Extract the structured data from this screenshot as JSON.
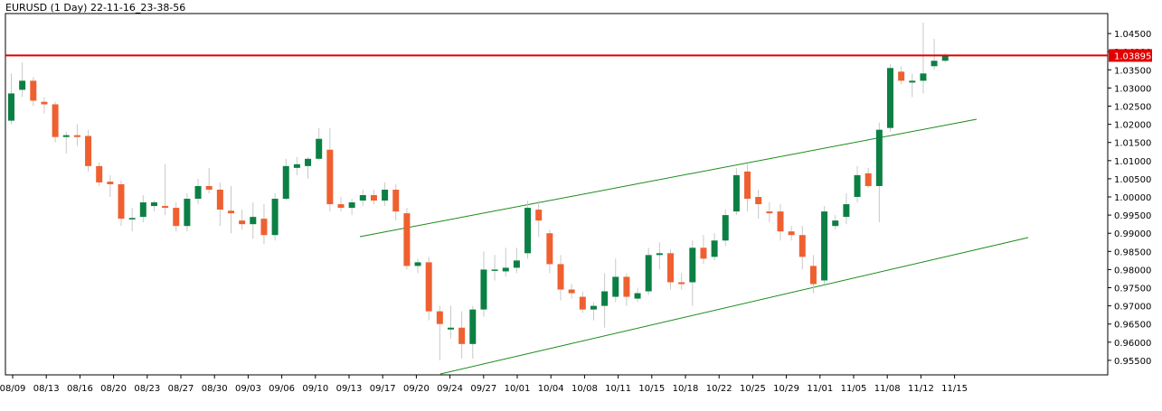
{
  "chart_data": {
    "type": "candlestick",
    "title": "EURUSD (1 Day) 22-11-16_23-38-56",
    "colors": {
      "up": "#0c8044",
      "down": "#ef6030",
      "wick": "#c8c8c8",
      "trendline": "#1a8a1a",
      "price_line": "#dd0000",
      "price_label_bg": "#e00000"
    },
    "ylim": [
      0.951,
      1.0505
    ],
    "y_ticks": [
      "0.95500",
      "0.96000",
      "0.96500",
      "0.97000",
      "0.97500",
      "0.98000",
      "0.98500",
      "0.99000",
      "0.99500",
      "1.00000",
      "1.00500",
      "1.01000",
      "1.01500",
      "1.02000",
      "1.02500",
      "1.03000",
      "1.03500",
      "1.04000",
      "1.04500"
    ],
    "x_ticks": [
      "08/09",
      "08/13",
      "08/16",
      "08/20",
      "08/23",
      "08/27",
      "08/30",
      "09/03",
      "09/06",
      "09/10",
      "09/13",
      "09/17",
      "09/20",
      "09/24",
      "09/27",
      "10/01",
      "10/04",
      "10/08",
      "10/11",
      "10/15",
      "10/18",
      "10/22",
      "10/25",
      "10/29",
      "11/01",
      "11/05",
      "11/08",
      "11/12",
      "11/15"
    ],
    "current_price": 1.03895,
    "current_price_label": "1.03895",
    "candles": [
      {
        "o": 1.021,
        "h": 1.034,
        "l": 1.02,
        "c": 1.0285
      },
      {
        "o": 1.0295,
        "h": 1.037,
        "l": 1.0275,
        "c": 1.032
      },
      {
        "o": 1.032,
        "h": 1.033,
        "l": 1.025,
        "c": 1.0265
      },
      {
        "o": 1.0262,
        "h": 1.0275,
        "l": 1.023,
        "c": 1.0255
      },
      {
        "o": 1.0255,
        "h": 1.0262,
        "l": 1.015,
        "c": 1.0165
      },
      {
        "o": 1.0165,
        "h": 1.018,
        "l": 1.012,
        "c": 1.017
      },
      {
        "o": 1.017,
        "h": 1.02,
        "l": 1.014,
        "c": 1.0165
      },
      {
        "o": 1.0168,
        "h": 1.0185,
        "l": 1.007,
        "c": 1.0085
      },
      {
        "o": 1.0085,
        "h": 1.0095,
        "l": 1.003,
        "c": 1.004
      },
      {
        "o": 1.0042,
        "h": 1.006,
        "l": 1.0,
        "c": 1.0035
      },
      {
        "o": 1.0035,
        "h": 1.0045,
        "l": 0.992,
        "c": 0.994
      },
      {
        "o": 0.9938,
        "h": 0.997,
        "l": 0.9905,
        "c": 0.9942
      },
      {
        "o": 0.9945,
        "h": 1.0005,
        "l": 0.993,
        "c": 0.9985
      },
      {
        "o": 0.9975,
        "h": 0.999,
        "l": 0.996,
        "c": 0.9985
      },
      {
        "o": 0.9975,
        "h": 1.009,
        "l": 0.995,
        "c": 0.997
      },
      {
        "o": 0.997,
        "h": 0.9985,
        "l": 0.9905,
        "c": 0.992
      },
      {
        "o": 0.992,
        "h": 1.001,
        "l": 0.9905,
        "c": 0.9995
      },
      {
        "o": 0.9995,
        "h": 1.005,
        "l": 0.998,
        "c": 1.003
      },
      {
        "o": 1.003,
        "h": 1.008,
        "l": 1.001,
        "c": 1.002
      },
      {
        "o": 1.002,
        "h": 1.004,
        "l": 0.992,
        "c": 0.9965
      },
      {
        "o": 0.9962,
        "h": 1.003,
        "l": 0.99,
        "c": 0.9955
      },
      {
        "o": 0.9935,
        "h": 0.9965,
        "l": 0.991,
        "c": 0.9925
      },
      {
        "o": 0.9925,
        "h": 0.9985,
        "l": 0.9885,
        "c": 0.9945
      },
      {
        "o": 0.994,
        "h": 0.998,
        "l": 0.987,
        "c": 0.9895
      },
      {
        "o": 0.9895,
        "h": 1.001,
        "l": 0.988,
        "c": 0.9995
      },
      {
        "o": 0.9995,
        "h": 1.0105,
        "l": 0.999,
        "c": 1.0085
      },
      {
        "o": 1.008,
        "h": 1.011,
        "l": 1.006,
        "c": 1.009
      },
      {
        "o": 1.0085,
        "h": 1.011,
        "l": 1.005,
        "c": 1.0105
      },
      {
        "o": 1.0105,
        "h": 1.019,
        "l": 1.01,
        "c": 1.016
      },
      {
        "o": 1.013,
        "h": 1.019,
        "l": 0.996,
        "c": 0.998
      },
      {
        "o": 0.998,
        "h": 1.0,
        "l": 0.996,
        "c": 0.997
      },
      {
        "o": 0.997,
        "h": 0.9995,
        "l": 0.995,
        "c": 0.9985
      },
      {
        "o": 0.999,
        "h": 1.002,
        "l": 0.9975,
        "c": 1.0005
      },
      {
        "o": 1.0005,
        "h": 1.002,
        "l": 0.998,
        "c": 0.999
      },
      {
        "o": 0.999,
        "h": 1.004,
        "l": 0.9975,
        "c": 1.002
      },
      {
        "o": 1.002,
        "h": 1.0035,
        "l": 0.9935,
        "c": 0.996
      },
      {
        "o": 0.9955,
        "h": 0.997,
        "l": 0.98,
        "c": 0.981
      },
      {
        "o": 0.981,
        "h": 0.983,
        "l": 0.979,
        "c": 0.982
      },
      {
        "o": 0.982,
        "h": 0.9835,
        "l": 0.966,
        "c": 0.9685
      },
      {
        "o": 0.9685,
        "h": 0.97,
        "l": 0.955,
        "c": 0.965
      },
      {
        "o": 0.9635,
        "h": 0.97,
        "l": 0.961,
        "c": 0.964
      },
      {
        "o": 0.964,
        "h": 0.9685,
        "l": 0.9555,
        "c": 0.9595
      },
      {
        "o": 0.9595,
        "h": 0.97,
        "l": 0.9555,
        "c": 0.969
      },
      {
        "o": 0.969,
        "h": 0.985,
        "l": 0.967,
        "c": 0.98
      },
      {
        "o": 0.98,
        "h": 0.984,
        "l": 0.977,
        "c": 0.98
      },
      {
        "o": 0.9795,
        "h": 0.986,
        "l": 0.978,
        "c": 0.9805
      },
      {
        "o": 0.9805,
        "h": 0.986,
        "l": 0.979,
        "c": 0.9825
      },
      {
        "o": 0.9845,
        "h": 0.999,
        "l": 0.983,
        "c": 0.997
      },
      {
        "o": 0.9965,
        "h": 0.999,
        "l": 0.989,
        "c": 0.9935
      },
      {
        "o": 0.99,
        "h": 0.991,
        "l": 0.979,
        "c": 0.9815
      },
      {
        "o": 0.9815,
        "h": 0.984,
        "l": 0.9715,
        "c": 0.9745
      },
      {
        "o": 0.9745,
        "h": 0.976,
        "l": 0.972,
        "c": 0.9735
      },
      {
        "o": 0.9725,
        "h": 0.974,
        "l": 0.968,
        "c": 0.969
      },
      {
        "o": 0.969,
        "h": 0.971,
        "l": 0.966,
        "c": 0.97
      },
      {
        "o": 0.97,
        "h": 0.979,
        "l": 0.964,
        "c": 0.974
      },
      {
        "o": 0.9725,
        "h": 0.983,
        "l": 0.971,
        "c": 0.978
      },
      {
        "o": 0.978,
        "h": 0.979,
        "l": 0.97,
        "c": 0.9725
      },
      {
        "o": 0.972,
        "h": 0.975,
        "l": 0.971,
        "c": 0.9735
      },
      {
        "o": 0.974,
        "h": 0.986,
        "l": 0.973,
        "c": 0.984
      },
      {
        "o": 0.984,
        "h": 0.9875,
        "l": 0.98,
        "c": 0.9845
      },
      {
        "o": 0.9845,
        "h": 0.9855,
        "l": 0.9745,
        "c": 0.9765
      },
      {
        "o": 0.9765,
        "h": 0.979,
        "l": 0.9745,
        "c": 0.976
      },
      {
        "o": 0.9765,
        "h": 0.988,
        "l": 0.97,
        "c": 0.986
      },
      {
        "o": 0.986,
        "h": 0.9895,
        "l": 0.9815,
        "c": 0.983
      },
      {
        "o": 0.9835,
        "h": 0.99,
        "l": 0.9825,
        "c": 0.988
      },
      {
        "o": 0.988,
        "h": 0.9965,
        "l": 0.9865,
        "c": 0.995
      },
      {
        "o": 0.996,
        "h": 1.008,
        "l": 0.995,
        "c": 1.006
      },
      {
        "o": 1.007,
        "h": 1.009,
        "l": 0.996,
        "c": 0.9995
      },
      {
        "o": 1.0,
        "h": 1.002,
        "l": 0.994,
        "c": 0.998
      },
      {
        "o": 0.996,
        "h": 0.9985,
        "l": 0.993,
        "c": 0.9955
      },
      {
        "o": 0.996,
        "h": 0.998,
        "l": 0.988,
        "c": 0.9905
      },
      {
        "o": 0.9905,
        "h": 0.992,
        "l": 0.988,
        "c": 0.9895
      },
      {
        "o": 0.9895,
        "h": 0.992,
        "l": 0.98,
        "c": 0.9835
      },
      {
        "o": 0.981,
        "h": 0.984,
        "l": 0.9735,
        "c": 0.976
      },
      {
        "o": 0.977,
        "h": 0.9975,
        "l": 0.976,
        "c": 0.996
      },
      {
        "o": 0.992,
        "h": 0.995,
        "l": 0.991,
        "c": 0.9935
      },
      {
        "o": 0.9945,
        "h": 1.001,
        "l": 0.9925,
        "c": 0.998
      },
      {
        "o": 1.0,
        "h": 1.0085,
        "l": 0.9985,
        "c": 1.006
      },
      {
        "o": 1.0065,
        "h": 1.008,
        "l": 1.0025,
        "c": 1.003
      },
      {
        "o": 1.003,
        "h": 1.0205,
        "l": 0.993,
        "c": 1.0185
      },
      {
        "o": 1.019,
        "h": 1.0365,
        "l": 1.018,
        "c": 1.0355
      },
      {
        "o": 1.0345,
        "h": 1.036,
        "l": 1.031,
        "c": 1.032
      },
      {
        "o": 1.0315,
        "h": 1.034,
        "l": 1.0275,
        "c": 1.032
      },
      {
        "o": 1.032,
        "h": 1.048,
        "l": 1.0285,
        "c": 1.034
      },
      {
        "o": 1.036,
        "h": 1.0435,
        "l": 1.035,
        "c": 1.0375
      },
      {
        "o": 1.0375,
        "h": 1.0395,
        "l": 1.037,
        "c": 1.039
      }
    ]
  }
}
